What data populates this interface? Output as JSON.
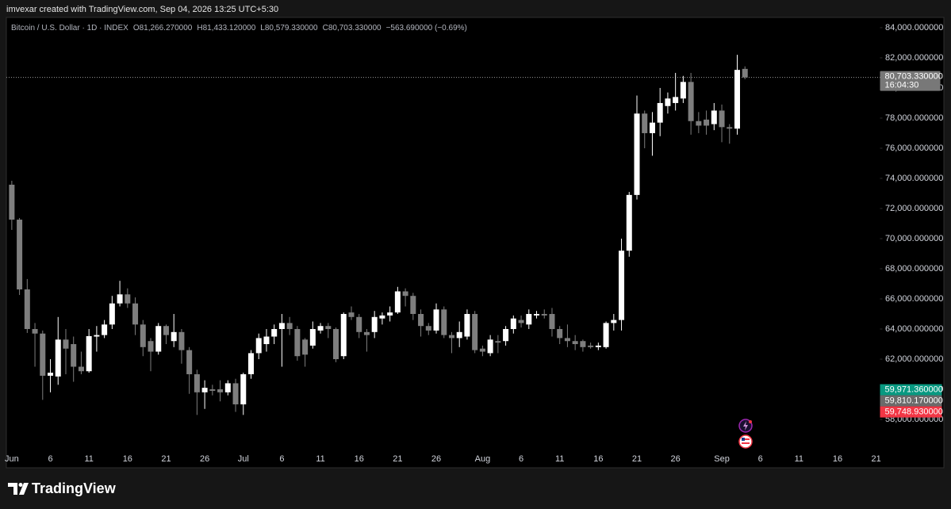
{
  "header": {
    "credit": "imvexar created with TradingView.com, Sep 04, 2026 13:25 UTC+5:30",
    "brand": "TradingView"
  },
  "chart_data": {
    "type": "candlestick",
    "legend_items": [
      "Bitcoin / U.S. Dollar · 1D · INDEX",
      "O",
      "81,266.270000",
      "H",
      "81,433.120000",
      "L",
      "80,579.330000",
      "C",
      "80,703.330000",
      "−563.690000 (−0.69%)"
    ],
    "categories": [
      "Jun",
      null,
      null,
      null,
      null,
      "6",
      null,
      null,
      null,
      null,
      "11",
      null,
      null,
      null,
      null,
      "16",
      null,
      null,
      null,
      null,
      "21",
      null,
      null,
      null,
      null,
      "26",
      null,
      null,
      null,
      null,
      "Jul",
      null,
      null,
      null,
      null,
      "6",
      null,
      null,
      null,
      null,
      "11",
      null,
      null,
      null,
      null,
      "16",
      null,
      null,
      null,
      null,
      "21",
      null,
      null,
      null,
      null,
      "26",
      null,
      null,
      null,
      null,
      null,
      "Aug",
      null,
      null,
      null,
      null,
      "6",
      null,
      null,
      null,
      null,
      "11",
      null,
      null,
      null,
      null,
      "16",
      null,
      null,
      null,
      null,
      "21",
      null,
      null,
      null,
      null,
      "26",
      null,
      null,
      null,
      null,
      null,
      "Sep",
      null,
      null,
      null,
      null,
      "6",
      null,
      null,
      null,
      null,
      "11",
      null,
      null,
      null,
      null,
      "16",
      null,
      null,
      null,
      null,
      "21"
    ],
    "open": [
      73580,
      71260,
      66630,
      64000,
      63700,
      60900,
      60850,
      63300,
      63000,
      61500,
      61200,
      63500,
      63600,
      64300,
      65700,
      66300,
      65700,
      64300,
      63200,
      62500,
      64200,
      63200,
      63800,
      62600,
      61000,
      59800,
      60000,
      60000,
      59800,
      60400,
      59000,
      61000,
      62400,
      63000,
      63500,
      64000,
      64400,
      64000,
      63300,
      62900,
      63900,
      64200,
      64000,
      62200,
      65100,
      64800,
      63800,
      63800,
      64700,
      64900,
      65100,
      66500,
      66200,
      65000,
      64200,
      63900,
      65300,
      63600,
      63400,
      63500,
      65000,
      62700,
      62400,
      63200,
      63200,
      64000,
      64600,
      64300,
      64900,
      65000,
      65000,
      64000,
      63400,
      63200,
      63200,
      62900,
      62800,
      62800,
      64400,
      64600,
      69200,
      72900,
      78300,
      77000,
      77700,
      78800,
      79000,
      79300,
      80400,
      77800,
      77900,
      77600,
      78500,
      77400,
      77300,
      81266.27,
      null,
      null,
      null,
      null,
      null,
      null,
      null,
      null,
      null,
      null,
      null,
      null,
      null,
      null,
      null,
      null,
      null
    ],
    "high": [
      73840,
      71370,
      67320,
      64400,
      63900,
      62000,
      64800,
      64000,
      63500,
      62500,
      64000,
      64200,
      64600,
      66200,
      67200,
      66700,
      66100,
      64600,
      63400,
      64400,
      64300,
      65000,
      64000,
      62800,
      61300,
      60600,
      60300,
      60600,
      60600,
      60700,
      61100,
      62600,
      63700,
      64000,
      64300,
      65000,
      64800,
      64200,
      63400,
      64500,
      64400,
      64400,
      64100,
      65100,
      65500,
      65000,
      64000,
      65200,
      65100,
      65500,
      66800,
      66700,
      66400,
      65300,
      64400,
      65700,
      65500,
      63800,
      64500,
      65300,
      65200,
      62900,
      63600,
      63600,
      64200,
      64900,
      64900,
      65300,
      65200,
      65300,
      65400,
      64200,
      64300,
      63600,
      63300,
      63100,
      63100,
      64500,
      65000,
      70000,
      73100,
      79500,
      78500,
      78400,
      80000,
      79700,
      81000,
      80800,
      81000,
      78400,
      78500,
      79000,
      78900,
      77600,
      82200,
      81433.12,
      null,
      null,
      null,
      null,
      null,
      null,
      null,
      null,
      null,
      null,
      null,
      null,
      null,
      null,
      null,
      null,
      null
    ],
    "low": [
      70580,
      66260,
      63740,
      61500,
      59300,
      59800,
      60300,
      61000,
      60500,
      61000,
      61100,
      62500,
      63400,
      64000,
      65500,
      65400,
      63600,
      62200,
      61200,
      62300,
      63000,
      62800,
      61700,
      59700,
      58300,
      58700,
      59600,
      59200,
      59600,
      58500,
      58300,
      60700,
      62000,
      62500,
      63000,
      61500,
      63600,
      61900,
      61500,
      62700,
      63700,
      63400,
      61800,
      62000,
      64600,
      63400,
      62500,
      63400,
      64300,
      64500,
      65000,
      65500,
      64600,
      63500,
      63600,
      63700,
      63400,
      62400,
      62800,
      63300,
      62400,
      62200,
      62200,
      62400,
      62900,
      63700,
      64100,
      64000,
      64700,
      64700,
      63500,
      63000,
      62800,
      62600,
      62500,
      62700,
      62600,
      62700,
      63900,
      63900,
      68800,
      72600,
      76000,
      75500,
      76800,
      78300,
      78500,
      79000,
      76900,
      77000,
      76900,
      77200,
      76400,
      76300,
      76900,
      80579.33,
      null,
      null,
      null,
      null,
      null,
      null,
      null,
      null,
      null,
      null,
      null,
      null,
      null,
      null,
      null,
      null,
      null
    ],
    "close": [
      71260,
      66630,
      64000,
      63700,
      60900,
      61100,
      63300,
      62700,
      61500,
      61200,
      63530,
      63600,
      64300,
      65700,
      66300,
      65700,
      64300,
      62800,
      62500,
      64200,
      63600,
      63800,
      62600,
      61000,
      59800,
      60100,
      59900,
      59800,
      60400,
      59000,
      61000,
      62400,
      63400,
      63500,
      64000,
      64400,
      64000,
      62200,
      62300,
      64000,
      64200,
      64000,
      62000,
      65000,
      64800,
      63800,
      63600,
      64800,
      64900,
      65100,
      66500,
      66200,
      65000,
      64200,
      63900,
      65300,
      63600,
      63400,
      63800,
      65000,
      62600,
      62500,
      63300,
      63100,
      64000,
      64700,
      64400,
      65000,
      65000,
      64900,
      64000,
      63400,
      63200,
      63000,
      62800,
      62800,
      62900,
      64400,
      64600,
      69200,
      72900,
      78300,
      77000,
      77700,
      79000,
      79300,
      79400,
      80400,
      77800,
      77500,
      77500,
      78500,
      77400,
      77300,
      81200,
      80703.33,
      null,
      null,
      null,
      null,
      null,
      null,
      null,
      null,
      null,
      null,
      null,
      null,
      null,
      null,
      null,
      null,
      null
    ],
    "up_color": "#ffffff",
    "down_color": "#7e7e7e",
    "ylim": [
      55950,
      84680
    ],
    "yticks": [
      {
        "value": 58000,
        "label": "58,000.000000"
      },
      {
        "value": 60000,
        "label": "60,000.000000"
      },
      {
        "value": 62000,
        "label": "62,000.000000"
      },
      {
        "value": 64000,
        "label": "64,000.000000"
      },
      {
        "value": 66000,
        "label": "66,000.000000"
      },
      {
        "value": 68000,
        "label": "68,000.000000"
      },
      {
        "value": 70000,
        "label": "70,000.000000"
      },
      {
        "value": 72000,
        "label": "72,000.000000"
      },
      {
        "value": 74000,
        "label": "74,000.000000"
      },
      {
        "value": 76000,
        "label": "76,000.000000"
      },
      {
        "value": 78000,
        "label": "78,000.000000"
      },
      {
        "value": 80000,
        "label": "80,000.000000"
      },
      {
        "value": 82000,
        "label": "82,000.000000"
      },
      {
        "value": 84000,
        "label": "84,000.000000"
      }
    ],
    "grid": false,
    "last_price": {
      "value": 80703.33,
      "label": "80,703.330000"
    },
    "countdown": "16:04:30",
    "price_labels": [
      {
        "value": 59971.36,
        "label": "59,971.360000",
        "color": "#089981"
      },
      {
        "value": 59810.17,
        "label": "59,810.170000",
        "color": "#6a6a6a"
      },
      {
        "value": 59748.93,
        "label": "59,748.930000",
        "color": "#f23645"
      }
    ]
  }
}
